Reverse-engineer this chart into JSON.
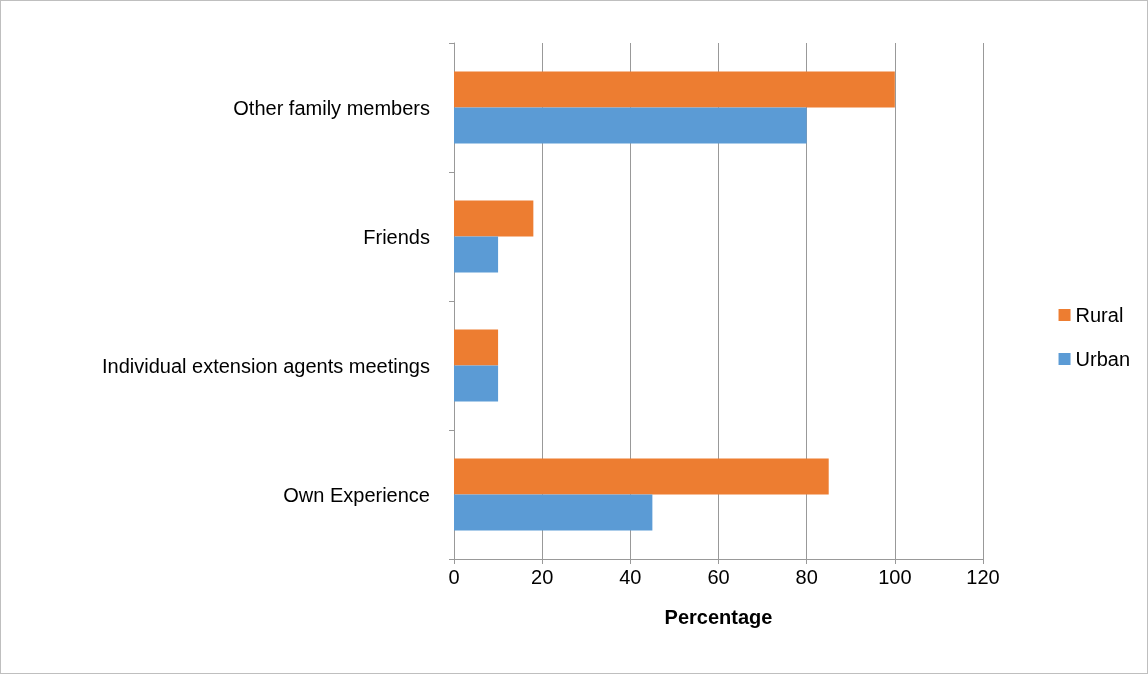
{
  "chart_data": {
    "type": "bar",
    "orientation": "horizontal",
    "xlabel": "Percentage",
    "categories": [
      "Other family members",
      "Friends",
      "Individual extension agents meetings",
      "Own Experience"
    ],
    "series": [
      {
        "name": "Rural",
        "color": "#ed7d31",
        "values": [
          100,
          18,
          10,
          85
        ]
      },
      {
        "name": "Urban",
        "color": "#5b9bd5",
        "values": [
          80,
          10,
          10,
          45
        ]
      }
    ],
    "xlim": [
      0,
      120
    ],
    "xticks": [
      0,
      20,
      40,
      60,
      80,
      100,
      120
    ],
    "grid": "x",
    "legend": "right"
  }
}
